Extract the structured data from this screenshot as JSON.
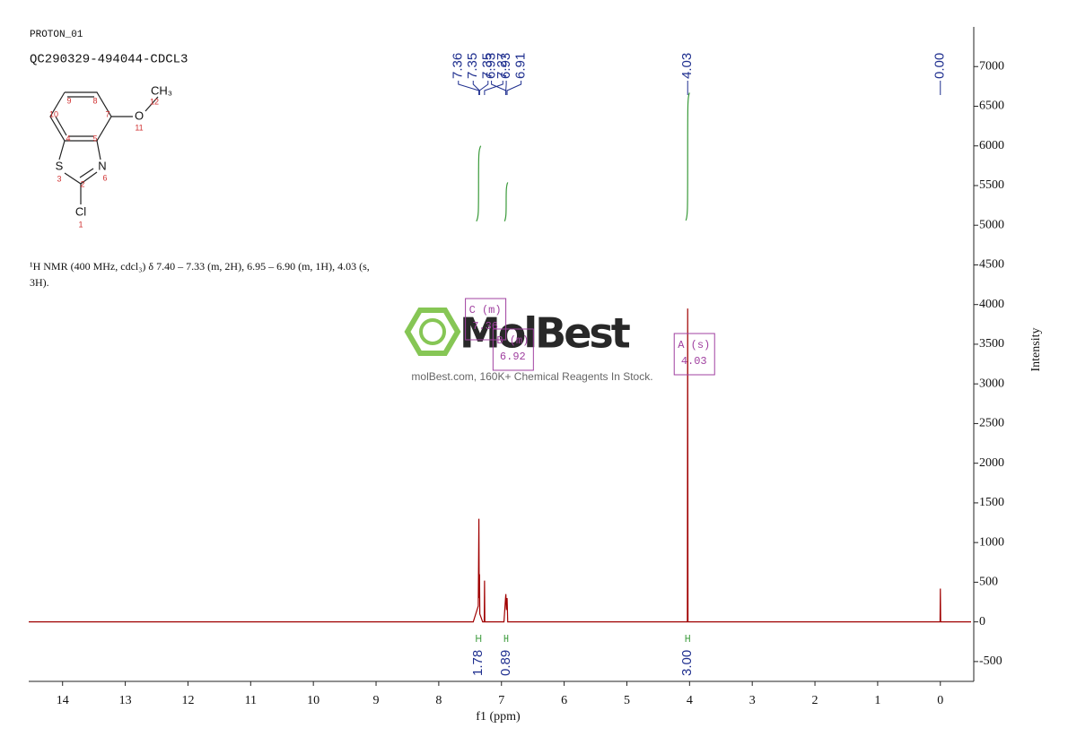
{
  "header": {
    "experiment": "PROTON_01",
    "sample": "QC290329-494044-CDCL3"
  },
  "molecule": {
    "atoms": [
      "O",
      "S",
      "N",
      "Cl",
      "CH₃"
    ],
    "numbers": [
      1,
      2,
      3,
      4,
      5,
      6,
      7,
      8,
      9,
      10,
      11,
      12
    ]
  },
  "description": "¹H NMR (400 MHz, cdcl₃) δ 7.40 – 7.33 (m, 2H), 6.95 – 6.90 (m, 1H), 4.03 (s, 3H).",
  "watermark": {
    "logo": "MolBest",
    "tagline": "molBest.com, 160K+ Chemical Reagents In Stock."
  },
  "chart_data": {
    "type": "line",
    "xlabel": "f1 (ppm)",
    "ylabel": "Intensity",
    "xlim": [
      14.54,
      -0.49
    ],
    "ylim": [
      -750,
      7500
    ],
    "xticks": [
      14,
      13,
      12,
      11,
      10,
      9,
      8,
      7,
      6,
      5,
      4,
      3,
      2,
      1,
      0
    ],
    "yticks": [
      -500,
      0,
      500,
      1000,
      1500,
      2000,
      2500,
      3000,
      3500,
      4000,
      4500,
      5000,
      5500,
      6000,
      6500,
      7000
    ],
    "color": "#a00000",
    "x": [
      14.54,
      7.45,
      7.37,
      7.36,
      7.355,
      7.35,
      7.345,
      7.3,
      7.275,
      7.27,
      7.265,
      6.96,
      6.935,
      6.93,
      6.92,
      6.91,
      6.9,
      4.06,
      4.035,
      4.03,
      4.025,
      0.02,
      0.005,
      0,
      -0.005,
      -0.49
    ],
    "values": [
      0,
      0,
      200,
      1300,
      300,
      600,
      100,
      0,
      0,
      520,
      0,
      0,
      300,
      350,
      150,
      300,
      0,
      0,
      0,
      3950,
      0,
      0,
      0,
      420,
      0,
      0
    ],
    "peak_labels": [
      7.36,
      7.35,
      7.35,
      7.27,
      6.93,
      6.93,
      6.91,
      4.03,
      {
        "value": 0,
        "label": "0.00"
      }
    ],
    "multiplets": [
      {
        "label": "C (m)",
        "shift": 7.36
      },
      {
        "label": "B (m)",
        "shift": 6.92
      },
      {
        "label": "A (s)",
        "shift": 4.03
      }
    ],
    "integrals": {
      "ranges": [
        [
          7.4,
          7.33
        ],
        [
          6.95,
          6.9
        ],
        [
          4.06,
          4.0
        ]
      ],
      "values": [
        1.78,
        0.89,
        3.0
      ],
      "value_labels": [
        "1.78",
        "0.89",
        "3.00"
      ],
      "curves": [
        [
          5050,
          6000
        ],
        [
          5050,
          5540
        ],
        [
          5060,
          6670
        ]
      ],
      "color": "#3a9a3a"
    }
  }
}
